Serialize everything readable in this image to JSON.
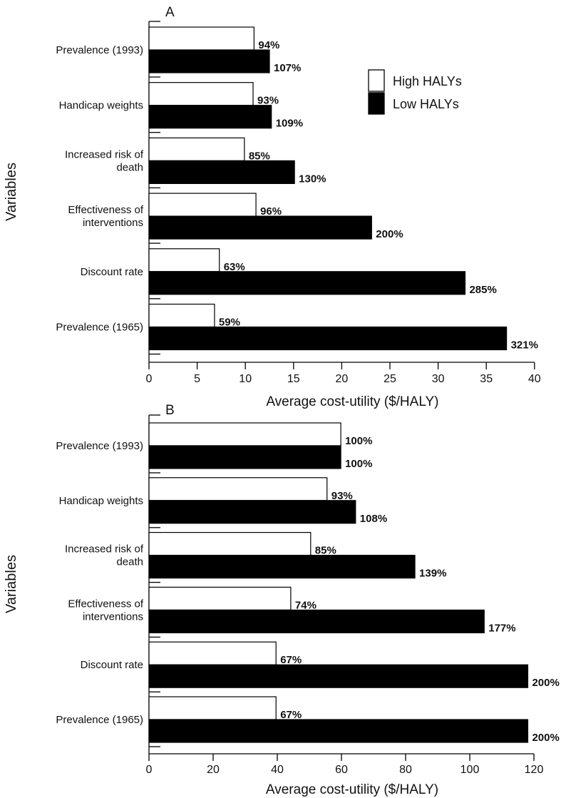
{
  "chart_data": [
    {
      "type": "bar",
      "orientation": "horizontal",
      "panel_label": "A",
      "categories": [
        "Prevalence (1993)",
        "Handicap weights",
        "Increased risk of death",
        "Effectiveness of interventions",
        "Discount rate",
        "Prevalence (1965)"
      ],
      "category_lines": [
        [
          "Prevalence (1993)"
        ],
        [
          "Handicap weights"
        ],
        [
          "Increased risk of",
          "death"
        ],
        [
          "Effectiveness of",
          "interventions"
        ],
        [
          "Discount rate"
        ],
        [
          "Prevalence (1965)"
        ]
      ],
      "series": [
        {
          "name": "High HALYs",
          "fill": "#ffffff",
          "values": [
            10.9,
            10.8,
            9.9,
            11.1,
            7.3,
            6.8
          ],
          "labels": [
            "94%",
            "93%",
            "85%",
            "96%",
            "63%",
            "59%"
          ]
        },
        {
          "name": "Low HALYs",
          "fill": "#000000",
          "values": [
            12.5,
            12.7,
            15.1,
            23.1,
            32.8,
            37.1
          ],
          "labels": [
            "107%",
            "109%",
            "130%",
            "200%",
            "285%",
            "321%"
          ]
        }
      ],
      "xlabel": "Average cost-utility ($/HALY)",
      "ylabel": "Variables",
      "xlim": [
        0,
        40
      ],
      "xticks": [
        0,
        5,
        10,
        15,
        20,
        25,
        30,
        35,
        40
      ],
      "legend": {
        "position": "top-right",
        "entries": [
          "High HALYs",
          "Low HALYs"
        ]
      }
    },
    {
      "type": "bar",
      "orientation": "horizontal",
      "panel_label": "B",
      "categories": [
        "Prevalence (1993)",
        "Handicap weights",
        "Increased risk of death",
        "Effectiveness of interventions",
        "Discount rate",
        "Prevalence (1965)"
      ],
      "category_lines": [
        [
          "Prevalence (1993)"
        ],
        [
          "Handicap weights"
        ],
        [
          "Increased risk of",
          "death"
        ],
        [
          "Effectiveness of",
          "interventions"
        ],
        [
          "Discount rate"
        ],
        [
          "Prevalence (1965)"
        ]
      ],
      "series": [
        {
          "name": "High HALYs",
          "fill": "#ffffff",
          "values": [
            59.8,
            55.5,
            50.4,
            44.2,
            39.6,
            39.6
          ],
          "labels": [
            "100%",
            "93%",
            "85%",
            "74%",
            "67%",
            "67%"
          ]
        },
        {
          "name": "Low HALYs",
          "fill": "#000000",
          "values": [
            59.8,
            64.4,
            82.9,
            104.5,
            118.1,
            118.1
          ],
          "labels": [
            "100%",
            "108%",
            "139%",
            "177%",
            "200%",
            "200%"
          ]
        }
      ],
      "xlabel": "Average cost-utility ($/HALY)",
      "ylabel": "Variables",
      "xlim": [
        0,
        120
      ],
      "xticks": [
        0,
        20,
        40,
        60,
        80,
        100,
        120
      ]
    }
  ]
}
